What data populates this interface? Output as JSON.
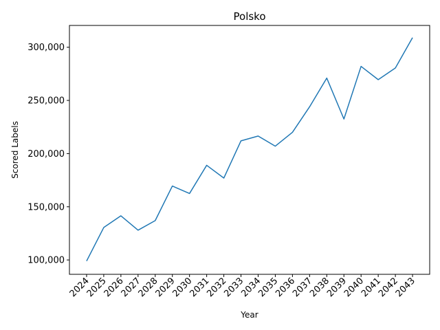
{
  "chart_data": {
    "type": "line",
    "title": "Polsko",
    "xlabel": "Year",
    "ylabel": "Scored Labels",
    "x": [
      "2024",
      "2025",
      "2026",
      "2027",
      "2028",
      "2029",
      "2030",
      "2031",
      "2032",
      "2033",
      "2034",
      "2035",
      "2036",
      "2037",
      "2038",
      "2039",
      "2040",
      "2041",
      "2042",
      "2043"
    ],
    "series": [
      {
        "values": [
          99000,
          130500,
          141500,
          128000,
          137000,
          169500,
          162500,
          189000,
          177000,
          212000,
          216500,
          207000,
          220000,
          244000,
          271000,
          232500,
          282000,
          269500,
          280500,
          309000
        ],
        "color": "#1f77b4"
      }
    ],
    "yticks": [
      100000,
      150000,
      200000,
      250000,
      300000
    ],
    "ytick_labels": [
      "100,000",
      "150,000",
      "200,000",
      "250,000",
      "300,000"
    ],
    "ylim": [
      86500,
      320500
    ],
    "grid": false,
    "legend": false
  }
}
